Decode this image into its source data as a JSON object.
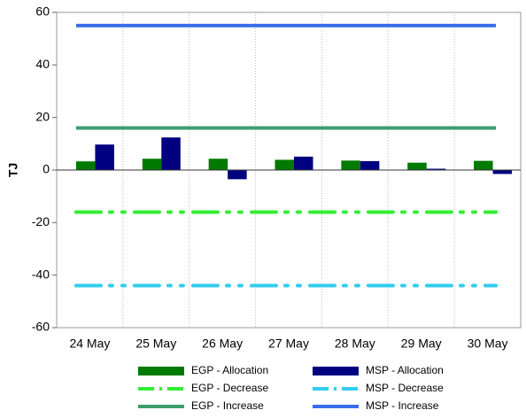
{
  "chart_data": {
    "type": "bar",
    "y_label": "TJ",
    "categories": [
      "24 May",
      "25 May",
      "26 May",
      "27 May",
      "28 May",
      "29 May",
      "30 May"
    ],
    "series": [
      {
        "name": "EGP - Allocation",
        "type": "bar",
        "color": "#007a00",
        "values": [
          3.3,
          4.3,
          4.3,
          3.9,
          3.6,
          2.8,
          3.5
        ]
      },
      {
        "name": "MSP - Allocation",
        "type": "bar",
        "color": "#000080",
        "values": [
          9.7,
          12.4,
          -3.5,
          5.1,
          3.4,
          0.5,
          -1.5
        ]
      },
      {
        "name": "EGP - Decrease",
        "type": "line",
        "dash": "dash-dot-dot",
        "color": "#33ee33",
        "values": [
          -16,
          -16,
          -16,
          -16,
          -16,
          -16,
          -16
        ]
      },
      {
        "name": "MSP - Decrease",
        "type": "line",
        "dash": "dash-dot-dot",
        "color": "#33ccee",
        "values": [
          -44,
          -44,
          -44,
          -44,
          -44,
          -44,
          -44
        ]
      },
      {
        "name": "EGP - Increase",
        "type": "line",
        "color": "#3d9e6e",
        "values": [
          16,
          16,
          16,
          16,
          16,
          16,
          16
        ]
      },
      {
        "name": "MSP - Increase",
        "type": "line",
        "color": "#3a6ee8",
        "values": [
          55,
          55,
          55,
          55,
          55,
          55,
          55
        ]
      }
    ],
    "ylim": [
      -60,
      60
    ],
    "yticks": [
      -60,
      -40,
      -20,
      0,
      20,
      40,
      60
    ],
    "grid": "vertical"
  }
}
